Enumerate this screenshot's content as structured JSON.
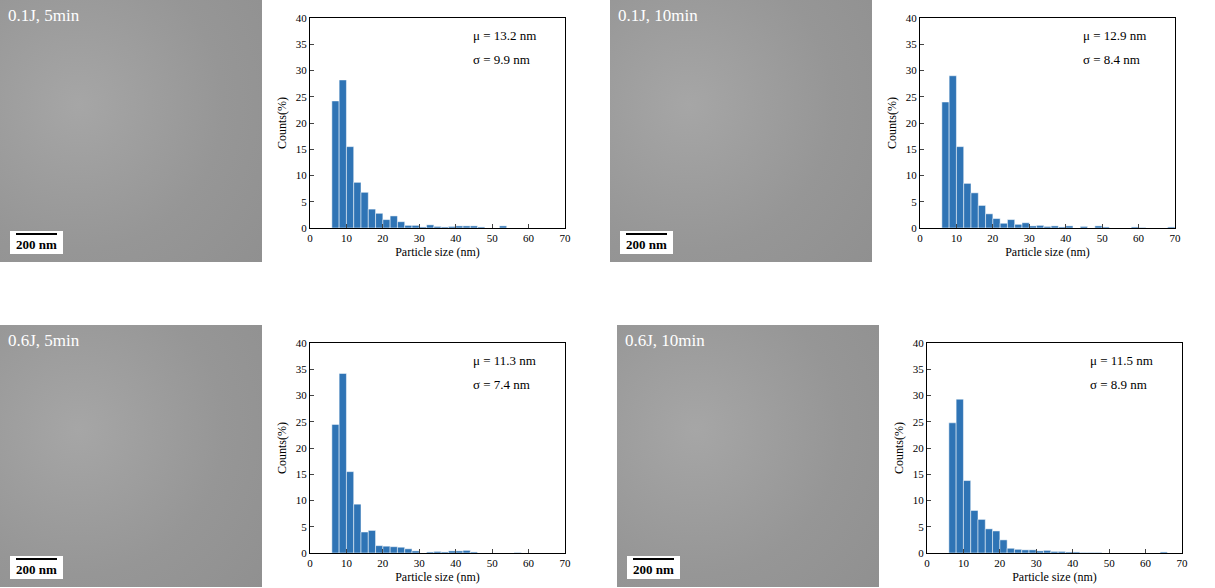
{
  "chart_data": [
    {
      "type": "histogram",
      "x_label": "Particle size (nm)",
      "y_label": "Counts(%)",
      "color": "#2f74b5",
      "bins": [
        6,
        8,
        10,
        12,
        14,
        16,
        18,
        20,
        22,
        24,
        26,
        28,
        30,
        32,
        34,
        36,
        38,
        40,
        42,
        44,
        46,
        48,
        50,
        52,
        54,
        56,
        58,
        60,
        62,
        64,
        66,
        68,
        70
      ],
      "values": [
        24.2,
        28.2,
        15.5,
        8.7,
        6.8,
        3.6,
        2.8,
        1.6,
        2.3,
        1.2,
        0.5,
        0.5,
        0.2,
        0.6,
        0.3,
        0.2,
        0.3,
        0.4,
        0.4,
        0.4,
        0.2,
        0,
        0,
        0.4,
        0,
        0,
        0,
        0,
        0,
        0,
        0,
        0
      ],
      "xlim": [
        0,
        70
      ],
      "xticks": [
        0,
        10,
        20,
        30,
        40,
        50,
        60,
        70
      ],
      "ylim": [
        0,
        40
      ],
      "yticks": [
        0,
        5,
        10,
        15,
        20,
        25,
        30,
        35,
        40
      ],
      "annotations": [
        "μ = 13.2 nm",
        "σ = 9.9 nm"
      ]
    },
    {
      "type": "histogram",
      "x_label": "Particle size (nm)",
      "y_label": "Counts(%)",
      "color": "#2f74b5",
      "bins": [
        6,
        8,
        10,
        12,
        14,
        16,
        18,
        20,
        22,
        24,
        26,
        28,
        30,
        32,
        34,
        36,
        38,
        40,
        42,
        44,
        46,
        48,
        50,
        52,
        54,
        56,
        58,
        60,
        62,
        64,
        66,
        68,
        70
      ],
      "values": [
        24,
        29,
        15.5,
        8.5,
        6.7,
        4.3,
        2.7,
        1.8,
        0.9,
        1.6,
        0.7,
        1.0,
        0.4,
        0.5,
        0.3,
        0.4,
        0.2,
        0.4,
        0,
        0.3,
        0,
        0.4,
        0.2,
        0,
        0,
        0,
        0.2,
        0.1,
        0,
        0,
        0,
        0.2
      ],
      "xlim": [
        0,
        70
      ],
      "xticks": [
        0,
        10,
        20,
        30,
        40,
        50,
        60,
        70
      ],
      "ylim": [
        0,
        40
      ],
      "yticks": [
        0,
        5,
        10,
        15,
        20,
        25,
        30,
        35,
        40
      ],
      "annotations": [
        "μ = 12.9 nm",
        "σ = 8.4 nm"
      ]
    },
    {
      "type": "histogram",
      "x_label": "Particle size (nm)",
      "y_label": "Counts(%)",
      "color": "#2f74b5",
      "bins": [
        6,
        8,
        10,
        12,
        14,
        16,
        18,
        20,
        22,
        24,
        26,
        28,
        30,
        32,
        34,
        36,
        38,
        40,
        42,
        44,
        46,
        48,
        50,
        52,
        54,
        56,
        58,
        60,
        62,
        64,
        66,
        68,
        70
      ],
      "values": [
        24.5,
        34.2,
        15.5,
        9.3,
        4.0,
        4.3,
        1.4,
        1.3,
        1.2,
        1.1,
        0.8,
        0.4,
        0,
        0.2,
        0.3,
        0.2,
        0.4,
        0.4,
        0.5,
        0.2,
        0,
        0,
        0,
        0,
        0,
        0.1,
        0,
        0,
        0,
        0,
        0,
        0
      ],
      "xlim": [
        0,
        70
      ],
      "xticks": [
        0,
        10,
        20,
        30,
        40,
        50,
        60,
        70
      ],
      "ylim": [
        0,
        40
      ],
      "yticks": [
        0,
        5,
        10,
        15,
        20,
        25,
        30,
        35,
        40
      ],
      "annotations": [
        "μ = 11.3 nm",
        "σ = 7.4 nm"
      ]
    },
    {
      "type": "histogram",
      "x_label": "Particle size (nm)",
      "y_label": "Counts(%)",
      "color": "#2f74b5",
      "bins": [
        6,
        8,
        10,
        12,
        14,
        16,
        18,
        20,
        22,
        24,
        26,
        28,
        30,
        32,
        34,
        36,
        38,
        40,
        42,
        44,
        46,
        48,
        50,
        52,
        54,
        56,
        58,
        60,
        62,
        64,
        66,
        68,
        70
      ],
      "values": [
        24.8,
        29.3,
        13.8,
        8.1,
        6.4,
        4.6,
        4.2,
        2.5,
        0.9,
        0.7,
        0.6,
        0.6,
        0.4,
        0.5,
        0.3,
        0.3,
        0.2,
        0.2,
        0.1,
        0.1,
        0.1,
        0,
        0,
        0,
        0,
        0,
        0,
        0,
        0,
        0.2,
        0,
        0
      ],
      "xlim": [
        0,
        70
      ],
      "xticks": [
        0,
        10,
        20,
        30,
        40,
        50,
        60,
        70
      ],
      "ylim": [
        0,
        40
      ],
      "yticks": [
        0,
        5,
        10,
        15,
        20,
        25,
        30,
        35,
        40
      ],
      "annotations": [
        "μ = 11.5 nm",
        "σ = 8.9 nm"
      ]
    }
  ],
  "micrographs": [
    {
      "label": "0.1J, 5min",
      "scale_bar": "200 nm"
    },
    {
      "label": "0.1J, 10min",
      "scale_bar": "200 nm"
    },
    {
      "label": "0.6J, 5min",
      "scale_bar": "200 nm"
    },
    {
      "label": "0.6J, 10min",
      "scale_bar": "200 nm"
    }
  ]
}
